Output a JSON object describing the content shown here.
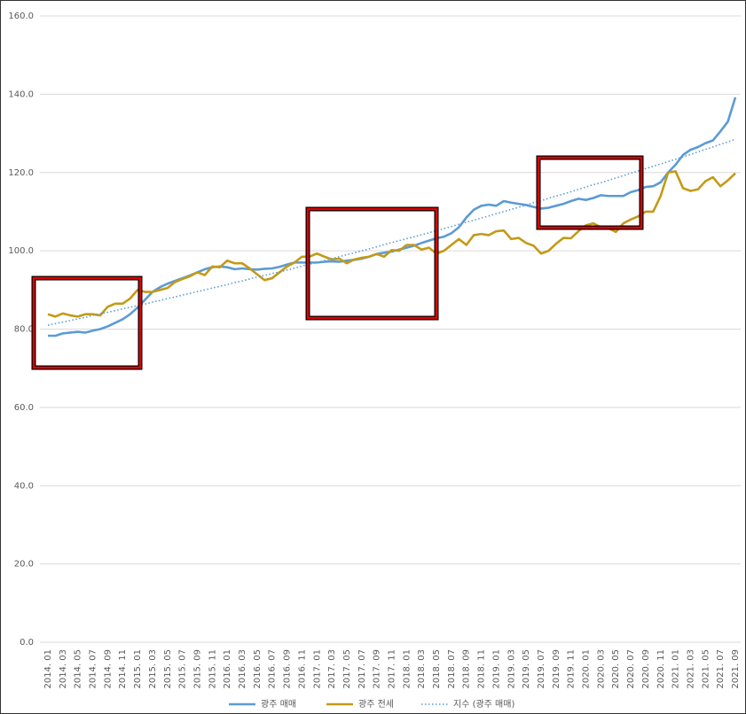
{
  "chart_data": {
    "type": "line",
    "categories": [
      "2014. 01",
      null,
      "2014. 03",
      null,
      "2014. 05",
      null,
      "2014. 07",
      null,
      "2014. 09",
      null,
      "2014. 11",
      null,
      "2015. 01",
      null,
      "2015. 03",
      null,
      "2015. 05",
      null,
      "2015. 07",
      null,
      "2015. 09",
      null,
      "2015. 11",
      null,
      "2016. 01",
      null,
      "2016. 03",
      null,
      "2016. 05",
      null,
      "2016. 07",
      null,
      "2016. 09",
      null,
      "2016. 11",
      null,
      "2017. 01",
      null,
      "2017. 03",
      null,
      "2017. 05",
      null,
      "2017. 07",
      null,
      "2017. 09",
      null,
      "2017. 11",
      null,
      "2018. 01",
      null,
      "2018. 03",
      null,
      "2018. 05",
      null,
      "2018. 07",
      null,
      "2018. 09",
      null,
      "2018. 11",
      null,
      "2019. 01",
      null,
      "2019. 03",
      null,
      "2019. 05",
      null,
      "2019. 07",
      null,
      "2019. 09",
      null,
      "2019. 11",
      null,
      "2020. 01",
      null,
      "2020. 03",
      null,
      "2020. 05",
      null,
      "2020. 07",
      null,
      "2020. 09",
      null,
      "2020. 11",
      null,
      "2021. 01",
      null,
      "2021. 03",
      null,
      "2021. 05",
      null,
      "2021. 07",
      null,
      "2021. 09"
    ],
    "series": [
      {
        "name": "광주 매매",
        "color": "#5b9bd5",
        "style": "solid",
        "values": [
          78.3,
          78.3,
          78.9,
          79.1,
          79.3,
          79.1,
          79.6,
          80,
          80.7,
          81.6,
          82.5,
          83.8,
          85.5,
          87.5,
          89.5,
          90.7,
          91.6,
          92.3,
          93,
          93.7,
          94.5,
          95.3,
          95.8,
          96,
          95.8,
          95.3,
          95.5,
          95.3,
          95.2,
          95.4,
          95.5,
          95.9,
          96.5,
          97,
          97,
          97,
          97,
          97.2,
          97.3,
          97.2,
          97.5,
          97.7,
          98,
          98.5,
          99.2,
          99.5,
          99.8,
          100.3,
          100.8,
          101.3,
          102,
          102.6,
          103.2,
          103.6,
          104.5,
          106,
          108.5,
          110.5,
          111.5,
          111.8,
          111.5,
          112.7,
          112.3,
          112,
          111.7,
          111.2,
          110.8,
          111,
          111.5,
          112,
          112.7,
          113.3,
          113,
          113.5,
          114.2,
          114,
          114,
          114,
          115,
          115.5,
          116.3,
          116.5,
          117.5,
          120,
          122,
          124.5,
          125.8,
          126.5,
          127.5,
          128.2,
          130.5,
          133,
          139.2
        ]
      },
      {
        "name": "광주 전세",
        "color": "#c49a17",
        "style": "solid",
        "values": [
          83.8,
          83.2,
          84,
          83.5,
          83.2,
          83.8,
          83.8,
          83.5,
          85.7,
          86.5,
          86.5,
          87.8,
          90,
          89.5,
          89.5,
          90,
          90.5,
          92,
          92.8,
          93.5,
          94.5,
          93.8,
          96,
          95.8,
          97.5,
          96.8,
          96.8,
          95.5,
          94,
          92.5,
          93,
          94.5,
          96,
          97,
          98.5,
          98.5,
          99.3,
          98.5,
          97.8,
          98,
          96.8,
          97.8,
          98.2,
          98.5,
          99.2,
          98.5,
          100.2,
          100,
          101.5,
          101.5,
          100.3,
          100.8,
          99.3,
          100,
          101.5,
          103,
          101.5,
          104,
          104.3,
          104,
          105,
          105.2,
          103,
          103.3,
          102,
          101.3,
          99.3,
          100,
          101.8,
          103.3,
          103.2,
          105,
          106.5,
          107,
          106,
          105.8,
          104.8,
          107,
          108,
          108.8,
          110,
          110,
          114,
          120,
          120.3,
          116,
          115.3,
          115.7,
          117.8,
          118.8,
          116.5,
          118,
          119.8
        ]
      },
      {
        "name": "지수 (광주 매매)",
        "color": "#5b9bd5",
        "style": "dotted",
        "values": [
          81.0,
          81.4,
          81.8,
          82.2,
          82.6,
          83.0,
          83.5,
          83.9,
          84.3,
          84.7,
          85.2,
          85.6,
          86.0,
          86.4,
          86.9,
          87.3,
          87.8,
          88.2,
          88.7,
          89.1,
          89.6,
          90.0,
          90.5,
          90.9,
          91.4,
          91.9,
          92.3,
          92.8,
          93.3,
          93.7,
          94.2,
          94.6,
          95.1,
          95.6,
          96.1,
          96.6,
          97.0,
          97.5,
          98.0,
          98.5,
          99.0,
          99.5,
          100.0,
          100.5,
          101.0,
          101.6,
          102.1,
          102.6,
          103.1,
          103.6,
          104.1,
          104.6,
          105.2,
          105.7,
          106.2,
          106.8,
          107.3,
          107.8,
          108.4,
          108.9,
          109.5,
          110.0,
          110.6,
          111.1,
          111.7,
          112.3,
          112.8,
          113.4,
          114.0,
          114.5,
          115.1,
          115.7,
          116.3,
          116.9,
          117.4,
          118.0,
          118.6,
          119.2,
          119.8,
          120.4,
          121.0,
          121.6,
          122.2,
          122.8,
          123.4,
          124.0,
          124.6,
          125.3,
          125.9,
          126.5,
          127.2,
          127.8,
          128.5
        ]
      }
    ],
    "ylim": [
      0,
      160
    ],
    "yticks": [
      {
        "value": 0,
        "label": "0.0"
      },
      {
        "value": 20,
        "label": "20.0"
      },
      {
        "value": 40,
        "label": "40.0"
      },
      {
        "value": 60,
        "label": "60.0"
      },
      {
        "value": 80,
        "label": "80.0"
      },
      {
        "value": 100,
        "label": "100.0"
      },
      {
        "value": 120,
        "label": "120.0"
      },
      {
        "value": 140,
        "label": "140.0"
      },
      {
        "value": 160,
        "label": "160.0"
      }
    ],
    "grid": true,
    "legend": "bottom"
  }
}
